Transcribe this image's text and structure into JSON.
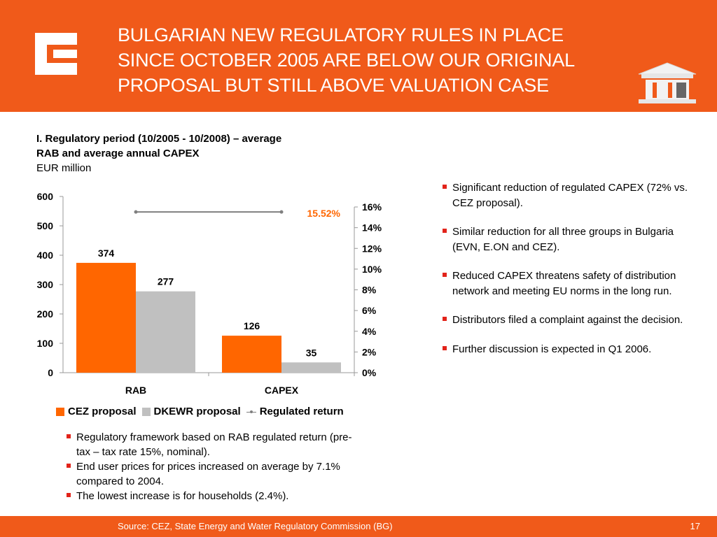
{
  "header": {
    "title_lines": [
      "BULGARIAN NEW REGULATORY RULES IN PLACE",
      "SINCE OCTOBER 2005 ARE BELOW OUR ORIGINAL",
      "PROPOSAL BUT STILL ABOVE VALUATION CASE"
    ],
    "logo_icon": "cez-logo-icon",
    "right_icon": "building-icon",
    "background_color": "#f05a1a"
  },
  "chart_section": {
    "title_line1": "I. Regulatory period (10/2005 - 10/2008) – average",
    "title_line2": "RAB and average annual CAPEX",
    "unit": "EUR million"
  },
  "chart_data": {
    "type": "bar",
    "categories": [
      "RAB",
      "CAPEX"
    ],
    "series": [
      {
        "name": "CEZ proposal",
        "values": [
          374,
          126
        ],
        "color": "#ff6600"
      },
      {
        "name": "DKEWR proposal",
        "values": [
          277,
          35
        ],
        "color": "#c0c0c0"
      }
    ],
    "line_series": {
      "name": "Regulated return",
      "value": 15.52,
      "label": "15.52%",
      "color": "#7f7f7f",
      "label_color": "#ff6600"
    },
    "ylim": [
      0,
      600
    ],
    "yticks": [
      "0",
      "100",
      "200",
      "300",
      "400",
      "500",
      "600"
    ],
    "y2lim": [
      0,
      16
    ],
    "y2ticks": [
      "0%",
      "2%",
      "4%",
      "6%",
      "8%",
      "10%",
      "12%",
      "14%",
      "16%"
    ],
    "legend_position": "bottom"
  },
  "left_bullets": [
    "Regulatory framework based on RAB regulated return (pre-tax – tax rate 15%, nominal).",
    "End user prices for  prices increased on average by 7.1% compared to 2004.",
    "The lowest increase is for households (2.4%)."
  ],
  "right_bullets": [
    "Significant reduction of regulated CAPEX (72% vs. CEZ proposal).",
    "Similar reduction for all three groups in Bulgaria (EVN, E.ON and CEZ).",
    "Reduced CAPEX threatens safety of distribution network and meeting EU norms in the long run.",
    "Distributors filed a complaint against the decision.",
    "Further discussion is expected in Q1 2006."
  ],
  "footer": {
    "source": "Source: CEZ, State Energy and Water Regulatory Commission (BG)",
    "page": "17"
  }
}
